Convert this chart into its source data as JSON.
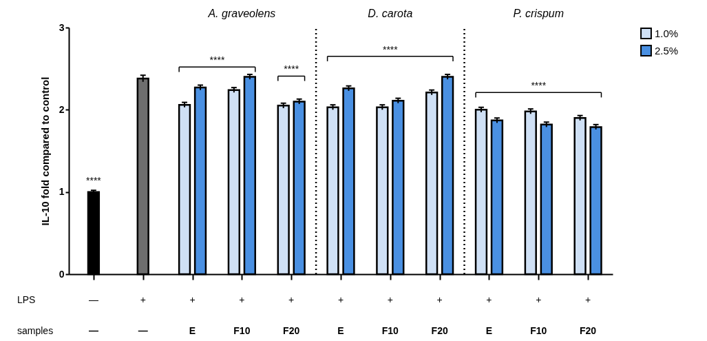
{
  "chart_data": {
    "type": "bar",
    "ylabel": "IL-10 fold compared to control",
    "categories": [
      "—\n—",
      "+\n—",
      "+\nE",
      "+\nF10",
      "+\nF20",
      "+\nE",
      "+\nF10",
      "+\nF20",
      "+\nE",
      "+\nF10",
      "+\nF20"
    ],
    "series": [
      {
        "color": "#000000",
        "values": [
          1.0,
          null,
          null,
          null,
          null,
          null,
          null,
          null,
          null,
          null,
          null
        ],
        "errors": [
          0.02,
          null,
          null,
          null,
          null,
          null,
          null,
          null,
          null,
          null,
          null
        ]
      },
      {
        "color": "#6e6e6e",
        "values": [
          null,
          2.38,
          null,
          null,
          null,
          null,
          null,
          null,
          null,
          null,
          null
        ],
        "errors": [
          null,
          0.04,
          null,
          null,
          null,
          null,
          null,
          null,
          null,
          null,
          null
        ]
      },
      {
        "name": "1.0%",
        "color": "#cfe0f5",
        "values": [
          null,
          null,
          2.06,
          2.24,
          2.05,
          2.03,
          2.03,
          2.21,
          2.0,
          1.98,
          1.9
        ],
        "errors": [
          null,
          null,
          0.03,
          0.03,
          0.03,
          0.03,
          0.03,
          0.03,
          0.03,
          0.03,
          0.03
        ]
      },
      {
        "name": "2.5%",
        "color": "#4a90e2",
        "values": [
          null,
          null,
          2.27,
          2.4,
          2.1,
          2.26,
          2.11,
          2.4,
          1.87,
          1.82,
          1.79
        ],
        "errors": [
          null,
          null,
          0.03,
          0.03,
          0.03,
          0.03,
          0.03,
          0.03,
          0.03,
          0.03,
          0.03
        ]
      }
    ],
    "ylim": [
      0,
      3
    ],
    "yticks": [
      0,
      1,
      2,
      3
    ],
    "grid": false,
    "legend": "right",
    "annotations": [
      "A. graveolens",
      "D. carota",
      "P. crispum",
      "****",
      "****",
      "****",
      "****",
      "****",
      "LPS",
      "samples"
    ]
  }
}
